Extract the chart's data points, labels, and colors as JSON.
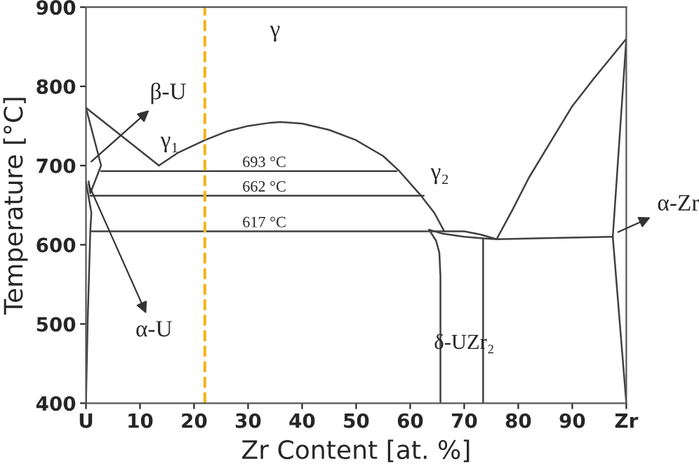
{
  "chart_data": {
    "type": "line",
    "xlabel": "Zr Content [at. %]",
    "ylabel": "Temperature [°C]",
    "xlim": [
      0,
      100
    ],
    "ylim": [
      400,
      900
    ],
    "xticks": [
      {
        "value": 0,
        "label": "U"
      },
      10,
      20,
      30,
      40,
      50,
      60,
      70,
      80,
      90,
      {
        "value": 100,
        "label": "Zr"
      }
    ],
    "yticks": [
      400,
      500,
      600,
      700,
      800,
      900
    ],
    "grid": false,
    "legend": false,
    "marker": "none",
    "line_style": "solid",
    "series": [
      {
        "color": "#404040",
        "x": [
          0,
          13.5
        ],
        "values": [
          773,
          700
        ]
      },
      {
        "color": "#404040",
        "x": [
          13.5,
          17,
          22,
          26,
          30,
          34,
          36,
          40,
          45,
          50,
          55,
          58,
          62,
          64.5,
          66.3
        ],
        "values": [
          700,
          716,
          732,
          743,
          750,
          754,
          755,
          753,
          745,
          732,
          712,
          693,
          662,
          640,
          617
        ]
      },
      {
        "color": "#404040",
        "x": [
          0,
          2.8,
          0.8,
          0.5
        ],
        "values": [
          773,
          700,
          665,
          680
        ]
      },
      {
        "color": "#404040",
        "x": [
          0,
          1,
          0.8,
          0.3,
          0
        ],
        "values": [
          680,
          640,
          617,
          500,
          400
        ]
      },
      {
        "color": "#404040",
        "x": [
          2.8,
          57.5
        ],
        "values": [
          693,
          693
        ]
      },
      {
        "color": "#404040",
        "x": [
          0.8,
          62.5
        ],
        "values": [
          662,
          662
        ]
      },
      {
        "color": "#404040",
        "x": [
          1,
          66.3,
          70,
          73,
          76,
          97.5
        ],
        "values": [
          617,
          617,
          617,
          613,
          607,
          610
        ]
      },
      {
        "color": "#404040",
        "x": [
          63.5,
          66,
          70,
          73.5,
          76
        ],
        "values": [
          619,
          614,
          610,
          608,
          607
        ]
      },
      {
        "color": "#404040",
        "x": [
          63.5,
          64.8,
          65.4,
          65.6,
          65.6
        ],
        "values": [
          619,
          605,
          590,
          560,
          400
        ]
      },
      {
        "color": "#404040",
        "x": [
          73.5,
          73.5
        ],
        "values": [
          608,
          400
        ]
      },
      {
        "color": "#404040",
        "x": [
          76,
          79,
          82,
          86,
          90,
          94,
          97,
          100
        ],
        "values": [
          607,
          645,
          685,
          730,
          775,
          810,
          835,
          860
        ]
      },
      {
        "color": "#404040",
        "x": [
          100,
          97.5,
          100
        ],
        "values": [
          860,
          610,
          400
        ]
      }
    ],
    "ref_lines": [
      {
        "axis": "x",
        "value": 22,
        "color": "#f5b51e",
        "line_style": "dashed"
      }
    ],
    "annotations": [
      "γ",
      "γ₁",
      "γ₂",
      "693 °C",
      "662 °C",
      "617 °C",
      "δ-UZr₂",
      "β-U",
      "α-U",
      "α-Zr"
    ]
  }
}
